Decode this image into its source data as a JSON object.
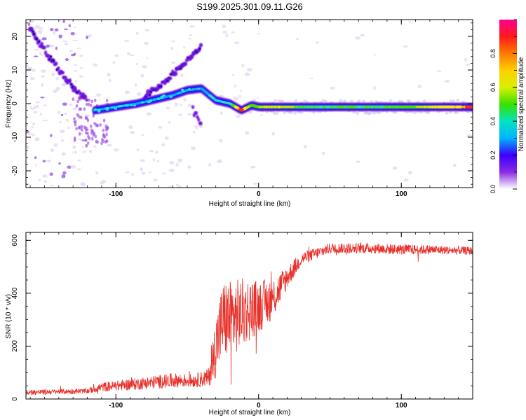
{
  "title": "S199.2025.301.09.11.G26",
  "colors": {
    "snr_line": "#e8302a",
    "spectrogram_low": "#e6dcf5",
    "spectrogram_mid": "#7a1fd8",
    "ridge_colors": [
      "#3a00c8",
      "#0aa0ff",
      "#26e0c8",
      "#44e000",
      "#ffe600",
      "#ff2a1a"
    ],
    "colorbar_stops": [
      "#ffffff",
      "#8a2be2",
      "#3a00ff",
      "#00b4ff",
      "#00e5c0",
      "#38e000",
      "#d8f000",
      "#ffd000",
      "#ff7a00",
      "#ff1a1a",
      "#ff0090"
    ]
  },
  "chart_data": [
    {
      "type": "heatmap",
      "name": "spectrogram",
      "xlabel": "Height of straight line (km)",
      "ylabel": "Frequency (Hz)",
      "xlim": [
        -163,
        150
      ],
      "ylim": [
        -25,
        25
      ],
      "x_ticks": [
        -100,
        0,
        100
      ],
      "y_ticks": [
        -20,
        -10,
        0,
        10,
        20
      ],
      "colorbar": {
        "label": "Normalized spectral amplitude",
        "range": [
          0,
          1
        ],
        "ticks": [
          "0.0",
          "0.2",
          "0.4",
          "0.6",
          "0.8"
        ]
      },
      "main_ridge": {
        "x": [
          -115,
          -100,
          -85,
          -70,
          -60,
          -50,
          -40,
          -30,
          -20,
          -12,
          -5,
          0,
          10,
          20,
          40,
          60,
          80,
          100,
          120,
          140,
          150
        ],
        "freq": [
          -2,
          -1,
          0,
          1.5,
          2.5,
          4,
          4.5,
          1,
          0,
          -2,
          -0.5,
          -1,
          -1,
          -1,
          -1,
          -1,
          -1,
          -1,
          -1,
          -1,
          -1
        ],
        "amplitude": [
          0.3,
          0.35,
          0.3,
          0.3,
          0.3,
          0.3,
          0.3,
          0.35,
          0.4,
          0.95,
          0.5,
          0.6,
          0.7,
          0.55,
          0.5,
          0.55,
          0.5,
          0.55,
          0.65,
          0.8,
          0.9
        ]
      },
      "upper_branch": {
        "x": [
          -160,
          -150,
          -140,
          -130,
          -120
        ],
        "freq": [
          22,
          16,
          10,
          5,
          1
        ]
      },
      "right_branch": {
        "x": [
          -80,
          -70,
          -60,
          -50,
          -40
        ],
        "freq": [
          2,
          5,
          9,
          13,
          17
        ]
      }
    },
    {
      "type": "line",
      "name": "snr",
      "xlabel": "Height of straight line (km)",
      "ylabel": "SNR (10 * v/v)",
      "xlim": [
        -163,
        150
      ],
      "ylim": [
        0,
        630
      ],
      "x_ticks": [
        -100,
        0,
        100
      ],
      "y_ticks": [
        0,
        200,
        400,
        600
      ],
      "envelope": {
        "x": [
          -163,
          -120,
          -110,
          -90,
          -60,
          -45,
          -35,
          -30,
          -25,
          -20,
          -10,
          0,
          10,
          20,
          30,
          50,
          80,
          100,
          120,
          150
        ],
        "mean": [
          25,
          30,
          45,
          55,
          70,
          70,
          80,
          200,
          300,
          300,
          330,
          350,
          380,
          460,
          530,
          570,
          570,
          565,
          565,
          560
        ],
        "spread": [
          10,
          10,
          18,
          22,
          28,
          25,
          35,
          120,
          150,
          150,
          130,
          100,
          80,
          45,
          25,
          20,
          20,
          20,
          18,
          15
        ]
      }
    }
  ]
}
